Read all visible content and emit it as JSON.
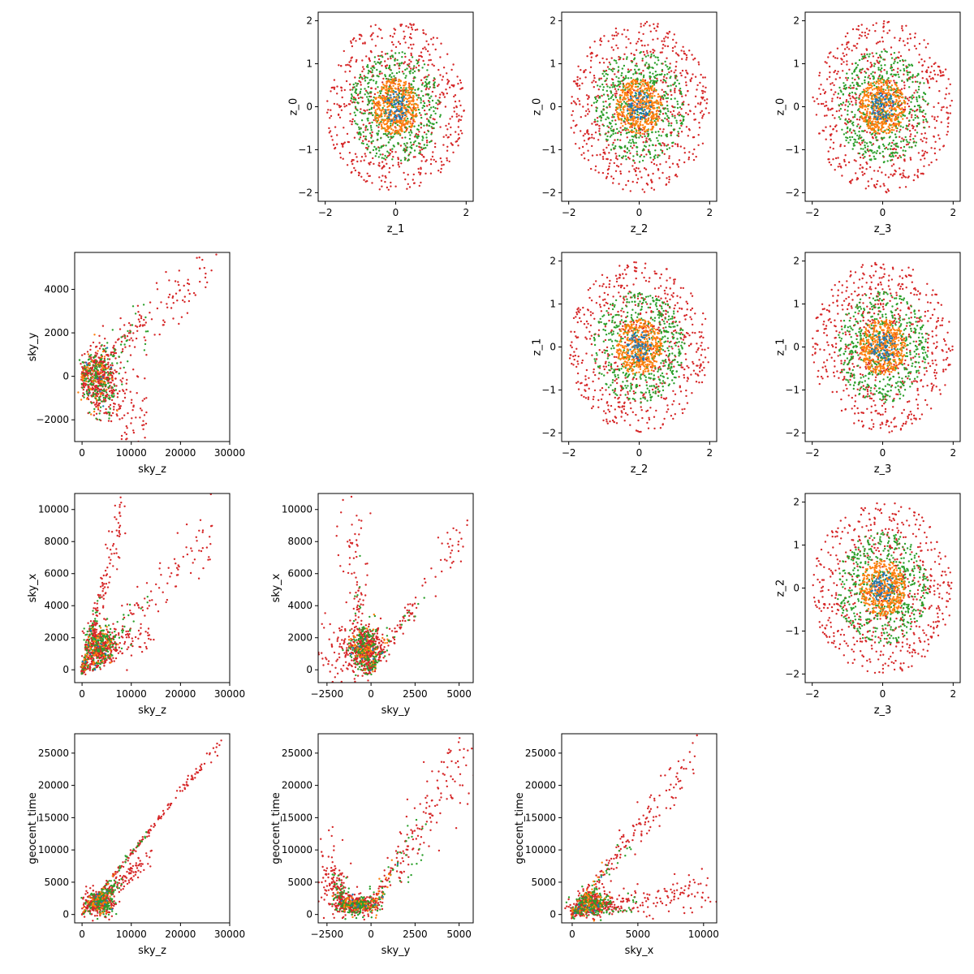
{
  "colors": {
    "c1": "#1f77b4",
    "c2": "#ff7f0e",
    "c3": "#2ca02c",
    "c4": "#d62728"
  },
  "chart_data": [
    {
      "type": "scatter",
      "xlabel": "z_1",
      "ylabel": "z_0",
      "xlim": [
        -2.2,
        2.2
      ],
      "ylim": [
        -2.2,
        2.2
      ],
      "xticks": [
        -2,
        0,
        2
      ],
      "yticks": [
        -2,
        -1,
        0,
        1,
        2
      ],
      "shape": "disc",
      "radii": [
        0.35,
        0.65,
        1.3,
        2.0
      ],
      "counts": [
        70,
        420,
        500,
        650
      ]
    },
    {
      "type": "scatter",
      "xlabel": "z_2",
      "ylabel": "z_0",
      "xlim": [
        -2.2,
        2.2
      ],
      "ylim": [
        -2.2,
        2.2
      ],
      "xticks": [
        -2,
        0,
        2
      ],
      "yticks": [
        -2,
        -1,
        0,
        1,
        2
      ],
      "shape": "disc",
      "radii": [
        0.35,
        0.65,
        1.3,
        2.0
      ],
      "counts": [
        70,
        420,
        500,
        650
      ]
    },
    {
      "type": "scatter",
      "xlabel": "z_3",
      "ylabel": "z_0",
      "xlim": [
        -2.2,
        2.2
      ],
      "ylim": [
        -2.2,
        2.2
      ],
      "xticks": [
        -2,
        0,
        2
      ],
      "yticks": [
        -2,
        -1,
        0,
        1,
        2
      ],
      "shape": "disc",
      "radii": [
        0.35,
        0.65,
        1.3,
        2.0
      ],
      "counts": [
        70,
        420,
        500,
        650
      ]
    },
    {
      "type": "scatter",
      "xlabel": "sky_z",
      "ylabel": "sky_y",
      "xlim": [
        -1500,
        30000
      ],
      "ylim": [
        -3000,
        5700
      ],
      "xticks": [
        0,
        10000,
        20000,
        30000
      ],
      "yticks": [
        -2000,
        0,
        2000,
        4000
      ],
      "shape": "arms",
      "arms": [
        {
          "from": [
            0,
            0
          ],
          "to": [
            27000,
            5200
          ],
          "w": [
            200,
            400
          ]
        },
        {
          "from": [
            0,
            0
          ],
          "to": [
            13000,
            -2300
          ],
          "w": [
            200,
            500
          ]
        }
      ],
      "blob": {
        "center": [
          3500,
          0
        ],
        "spread": [
          3000,
          1200
        ]
      },
      "counts": [
        10,
        60,
        200,
        650
      ]
    },
    {
      "type": "scatter",
      "xlabel": "z_2",
      "ylabel": "z_1",
      "xlim": [
        -2.2,
        2.2
      ],
      "ylim": [
        -2.2,
        2.2
      ],
      "xticks": [
        -2,
        0,
        2
      ],
      "yticks": [
        -2,
        -1,
        0,
        1,
        2
      ],
      "shape": "disc",
      "radii": [
        0.35,
        0.65,
        1.3,
        2.0
      ],
      "counts": [
        70,
        420,
        500,
        650
      ]
    },
    {
      "type": "scatter",
      "xlabel": "z_3",
      "ylabel": "z_1",
      "xlim": [
        -2.2,
        2.2
      ],
      "ylim": [
        -2.2,
        2.2
      ],
      "xticks": [
        -2,
        0,
        2
      ],
      "yticks": [
        -2,
        -1,
        0,
        1,
        2
      ],
      "shape": "disc",
      "radii": [
        0.35,
        0.65,
        1.3,
        2.0
      ],
      "counts": [
        70,
        420,
        500,
        650
      ]
    },
    {
      "type": "scatter",
      "xlabel": "sky_z",
      "ylabel": "sky_x",
      "xlim": [
        -1500,
        30000
      ],
      "ylim": [
        -800,
        11000
      ],
      "xticks": [
        0,
        10000,
        20000,
        30000
      ],
      "yticks": [
        0,
        2000,
        4000,
        6000,
        8000,
        10000
      ],
      "shape": "arms",
      "arms": [
        {
          "from": [
            0,
            0
          ],
          "to": [
            8500,
            10300
          ],
          "w": [
            200,
            500
          ]
        },
        {
          "from": [
            0,
            0
          ],
          "to": [
            27000,
            9000
          ],
          "w": [
            200,
            500
          ]
        },
        {
          "from": [
            0,
            0
          ],
          "to": [
            14000,
            2600
          ],
          "w": [
            200,
            300
          ]
        }
      ],
      "blob": {
        "center": [
          3500,
          1500
        ],
        "spread": [
          2500,
          1000
        ]
      },
      "counts": [
        10,
        60,
        200,
        650
      ]
    },
    {
      "type": "scatter",
      "xlabel": "sky_y",
      "ylabel": "sky_x",
      "xlim": [
        -3000,
        5800
      ],
      "ylim": [
        -800,
        11000
      ],
      "xticks": [
        -2500,
        0,
        2500,
        5000
      ],
      "yticks": [
        0,
        2000,
        4000,
        6000,
        8000,
        10000
      ],
      "shape": "arms",
      "arms": [
        {
          "from": [
            0,
            0
          ],
          "to": [
            5500,
            9200
          ],
          "w": [
            150,
            250
          ]
        },
        {
          "from": [
            -300,
            500
          ],
          "to": [
            -1200,
            9500
          ],
          "w": [
            200,
            900
          ]
        },
        {
          "from": [
            0,
            0
          ],
          "to": [
            -2600,
            2000
          ],
          "w": [
            200,
            500
          ]
        }
      ],
      "blob": {
        "center": [
          -300,
          1500
        ],
        "spread": [
          800,
          900
        ]
      },
      "counts": [
        10,
        60,
        200,
        650
      ]
    },
    {
      "type": "scatter",
      "xlabel": "z_3",
      "ylabel": "z_2",
      "xlim": [
        -2.2,
        2.2
      ],
      "ylim": [
        -2.2,
        2.2
      ],
      "xticks": [
        -2,
        0,
        2
      ],
      "yticks": [
        -2,
        -1,
        0,
        1,
        2
      ],
      "shape": "disc",
      "radii": [
        0.35,
        0.65,
        1.3,
        2.0
      ],
      "counts": [
        70,
        420,
        500,
        650
      ]
    },
    {
      "type": "scatter",
      "xlabel": "sky_z",
      "ylabel": "geocent_time",
      "xlim": [
        -1500,
        30000
      ],
      "ylim": [
        -1300,
        28000
      ],
      "xticks": [
        0,
        10000,
        20000,
        30000
      ],
      "yticks": [
        0,
        5000,
        10000,
        15000,
        20000,
        25000
      ],
      "shape": "arms",
      "arms": [
        {
          "from": [
            0,
            0
          ],
          "to": [
            28000,
            26500
          ],
          "w": [
            100,
            200
          ]
        },
        {
          "from": [
            2000,
            1500
          ],
          "to": [
            14000,
            9000
          ],
          "w": [
            150,
            400
          ]
        }
      ],
      "blob": {
        "center": [
          3500,
          1800
        ],
        "spread": [
          2500,
          1500
        ]
      },
      "counts": [
        10,
        60,
        200,
        650
      ]
    },
    {
      "type": "scatter",
      "xlabel": "sky_y",
      "ylabel": "geocent_time",
      "xlim": [
        -3000,
        5800
      ],
      "ylim": [
        -1300,
        28000
      ],
      "xticks": [
        -2500,
        0,
        2500,
        5000
      ],
      "yticks": [
        0,
        5000,
        10000,
        15000,
        20000,
        25000
      ],
      "shape": "arms",
      "arms": [
        {
          "from": [
            0,
            1000
          ],
          "to": [
            5500,
            25000
          ],
          "w": [
            200,
            1500
          ]
        },
        {
          "from": [
            -1500,
            1500
          ],
          "to": [
            -2600,
            8000
          ],
          "w": [
            200,
            1200
          ]
        }
      ],
      "blob": {
        "center": [
          -800,
          1500
        ],
        "spread": [
          900,
          1200
        ]
      },
      "counts": [
        10,
        60,
        200,
        650
      ]
    },
    {
      "type": "scatter",
      "xlabel": "sky_x",
      "ylabel": "geocent_time",
      "xlim": [
        -800,
        11000
      ],
      "ylim": [
        -1300,
        28000
      ],
      "xticks": [
        0,
        5000,
        10000
      ],
      "yticks": [
        0,
        5000,
        10000,
        15000,
        20000,
        25000
      ],
      "shape": "arms",
      "arms": [
        {
          "from": [
            0,
            0
          ],
          "to": [
            9500,
            25000
          ],
          "w": [
            150,
            900
          ]
        },
        {
          "from": [
            0,
            0
          ],
          "to": [
            10500,
            4000
          ],
          "w": [
            150,
            700
          ]
        }
      ],
      "blob": {
        "center": [
          1500,
          1800
        ],
        "spread": [
          1200,
          1500
        ]
      },
      "counts": [
        10,
        60,
        200,
        650
      ]
    }
  ]
}
